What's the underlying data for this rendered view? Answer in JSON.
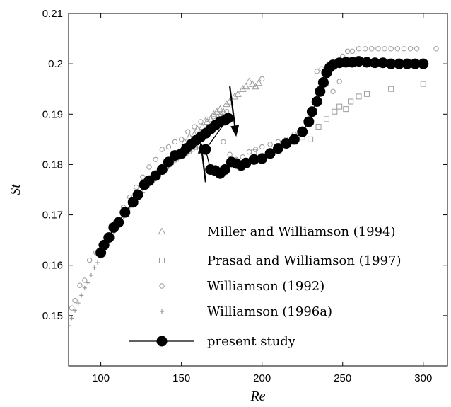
{
  "chart_data": {
    "type": "scatter",
    "title": "",
    "xlabel": "Re",
    "ylabel": "St",
    "xlim": [
      80,
      315
    ],
    "ylim": [
      0.14,
      0.21
    ],
    "x_ticks": [
      "100",
      "150",
      "200",
      "250",
      "300"
    ],
    "y_ticks": [
      "0.15",
      "0.16",
      "0.17",
      "0.18",
      "0.19",
      "0.2",
      "0.21"
    ],
    "grid": false,
    "legend_position": "lower-right",
    "colors": {
      "present_study": "#000000",
      "reference_data": "#9a9a9a"
    },
    "series": [
      {
        "name": "Miller and Williamson (1994)",
        "marker": "triangle",
        "points": [
          [
            152,
            0.1845
          ],
          [
            155,
            0.1855
          ],
          [
            158,
            0.186
          ],
          [
            160,
            0.187
          ],
          [
            163,
            0.1875
          ],
          [
            166,
            0.1885
          ],
          [
            168,
            0.189
          ],
          [
            170,
            0.19
          ],
          [
            172,
            0.1905
          ],
          [
            174,
            0.191
          ],
          [
            176,
            0.1905
          ],
          [
            178,
            0.192
          ],
          [
            180,
            0.1925
          ],
          [
            183,
            0.1935
          ],
          [
            185,
            0.194
          ],
          [
            188,
            0.195
          ],
          [
            190,
            0.1955
          ],
          [
            192,
            0.1965
          ],
          [
            194,
            0.196
          ],
          [
            196,
            0.1955
          ],
          [
            198,
            0.1962
          ]
        ]
      },
      {
        "name": "Prasad and Williamson (1997)",
        "marker": "square",
        "points": [
          [
            195,
            0.1825
          ],
          [
            200,
            0.181
          ],
          [
            205,
            0.182
          ],
          [
            210,
            0.1835
          ],
          [
            215,
            0.184
          ],
          [
            220,
            0.1845
          ],
          [
            225,
            0.1855
          ],
          [
            230,
            0.185
          ],
          [
            235,
            0.1875
          ],
          [
            240,
            0.189
          ],
          [
            245,
            0.1905
          ],
          [
            248,
            0.1915
          ],
          [
            252,
            0.191
          ],
          [
            255,
            0.1925
          ],
          [
            260,
            0.1935
          ],
          [
            265,
            0.194
          ],
          [
            280,
            0.195
          ],
          [
            300,
            0.196
          ]
        ]
      },
      {
        "name": "Williamson (1992)",
        "marker": "circle",
        "points": [
          [
            82,
            0.1515
          ],
          [
            84,
            0.153
          ],
          [
            87,
            0.156
          ],
          [
            90,
            0.157
          ],
          [
            93,
            0.161
          ],
          [
            97,
            0.1625
          ],
          [
            100,
            0.164
          ],
          [
            103,
            0.1655
          ],
          [
            107,
            0.1675
          ],
          [
            110,
            0.169
          ],
          [
            114,
            0.1715
          ],
          [
            118,
            0.1735
          ],
          [
            122,
            0.1755
          ],
          [
            126,
            0.1775
          ],
          [
            130,
            0.1795
          ],
          [
            134,
            0.181
          ],
          [
            138,
            0.183
          ],
          [
            142,
            0.1835
          ],
          [
            146,
            0.1845
          ],
          [
            150,
            0.185
          ],
          [
            154,
            0.1865
          ],
          [
            158,
            0.1875
          ],
          [
            162,
            0.1885
          ],
          [
            166,
            0.189
          ],
          [
            170,
            0.1895
          ],
          [
            174,
            0.19
          ],
          [
            178,
            0.1905
          ],
          [
            176,
            0.1845
          ],
          [
            180,
            0.182
          ],
          [
            184,
            0.181
          ],
          [
            188,
            0.1815
          ],
          [
            192,
            0.1825
          ],
          [
            196,
            0.183
          ],
          [
            200,
            0.1835
          ],
          [
            205,
            0.184
          ],
          [
            210,
            0.1845
          ],
          [
            215,
            0.185
          ],
          [
            220,
            0.186
          ],
          [
            225,
            0.187
          ],
          [
            230,
            0.1905
          ],
          [
            234,
            0.1985
          ],
          [
            237,
            0.199
          ],
          [
            240,
            0.196
          ],
          [
            244,
            0.1945
          ],
          [
            248,
            0.1965
          ],
          [
            250,
            0.2015
          ],
          [
            253,
            0.2025
          ],
          [
            256,
            0.2025
          ],
          [
            260,
            0.203
          ],
          [
            264,
            0.203
          ],
          [
            268,
            0.203
          ],
          [
            272,
            0.203
          ],
          [
            276,
            0.203
          ],
          [
            280,
            0.203
          ],
          [
            284,
            0.203
          ],
          [
            288,
            0.203
          ],
          [
            292,
            0.203
          ],
          [
            296,
            0.203
          ],
          [
            200,
            0.197
          ],
          [
            308,
            0.203
          ]
        ]
      },
      {
        "name": "Williamson (1996a)",
        "marker": "plus",
        "points": [
          [
            80,
            0.148
          ],
          [
            82,
            0.1495
          ],
          [
            84,
            0.151
          ],
          [
            86,
            0.1525
          ],
          [
            88,
            0.154
          ],
          [
            90,
            0.1555
          ],
          [
            92,
            0.1565
          ],
          [
            94,
            0.158
          ],
          [
            96,
            0.1595
          ],
          [
            98,
            0.1605
          ],
          [
            100,
            0.162
          ],
          [
            102,
            0.1635
          ],
          [
            104,
            0.1645
          ],
          [
            106,
            0.1655
          ],
          [
            108,
            0.1665
          ],
          [
            110,
            0.1675
          ],
          [
            112,
            0.1685
          ],
          [
            114,
            0.1695
          ],
          [
            116,
            0.1705
          ],
          [
            118,
            0.1715
          ],
          [
            120,
            0.1725
          ],
          [
            122,
            0.173
          ],
          [
            124,
            0.1738
          ],
          [
            126,
            0.1745
          ],
          [
            128,
            0.1752
          ],
          [
            130,
            0.1758
          ],
          [
            132,
            0.1765
          ],
          [
            134,
            0.177
          ],
          [
            136,
            0.1778
          ],
          [
            138,
            0.1785
          ],
          [
            140,
            0.179
          ],
          [
            142,
            0.1795
          ],
          [
            144,
            0.18
          ],
          [
            146,
            0.1805
          ],
          [
            148,
            0.181
          ],
          [
            150,
            0.1815
          ],
          [
            152,
            0.1818
          ],
          [
            154,
            0.1822
          ],
          [
            156,
            0.1826
          ],
          [
            158,
            0.183
          ],
          [
            160,
            0.1833
          ],
          [
            162,
            0.1836
          ]
        ]
      },
      {
        "name": "present study",
        "marker": "filled-circle-line",
        "points": [
          [
            100,
            0.1625
          ],
          [
            102,
            0.164
          ],
          [
            105,
            0.1655
          ],
          [
            108,
            0.1675
          ],
          [
            111,
            0.1685
          ],
          [
            115,
            0.1705
          ],
          [
            120,
            0.1725
          ],
          [
            123,
            0.174
          ],
          [
            127,
            0.176
          ],
          [
            130,
            0.1768
          ],
          [
            134,
            0.1778
          ],
          [
            138,
            0.179
          ],
          [
            142,
            0.1805
          ],
          [
            146,
            0.1818
          ],
          [
            150,
            0.1822
          ],
          [
            153,
            0.1832
          ],
          [
            156,
            0.184
          ],
          [
            159,
            0.1848
          ],
          [
            162,
            0.1855
          ],
          [
            165,
            0.1862
          ],
          [
            168,
            0.187
          ],
          [
            171,
            0.1878
          ],
          [
            174,
            0.1885
          ],
          [
            177,
            0.1888
          ],
          [
            179,
            0.1892
          ],
          [
            165,
            0.183
          ],
          [
            168,
            0.179
          ],
          [
            171,
            0.1788
          ],
          [
            174,
            0.1782
          ],
          [
            177,
            0.179
          ],
          [
            181,
            0.1805
          ],
          [
            184,
            0.1802
          ],
          [
            187,
            0.1798
          ],
          [
            190,
            0.1803
          ],
          [
            195,
            0.181
          ],
          [
            200,
            0.1812
          ],
          [
            205,
            0.1822
          ],
          [
            210,
            0.1832
          ],
          [
            215,
            0.1842
          ],
          [
            220,
            0.185
          ],
          [
            225,
            0.1865
          ],
          [
            229,
            0.1885
          ],
          [
            231,
            0.1905
          ],
          [
            234,
            0.1925
          ],
          [
            236,
            0.1945
          ],
          [
            238,
            0.1963
          ],
          [
            240,
            0.1982
          ],
          [
            242,
            0.1993
          ],
          [
            244,
            0.1998
          ],
          [
            248,
            0.2002
          ],
          [
            252,
            0.2003
          ],
          [
            256,
            0.2003
          ],
          [
            260,
            0.2005
          ],
          [
            265,
            0.2003
          ],
          [
            270,
            0.2002
          ],
          [
            275,
            0.2002
          ],
          [
            280,
            0.2
          ],
          [
            285,
            0.2
          ],
          [
            290,
            0.2
          ],
          [
            295,
            0.2
          ],
          [
            300,
            0.2
          ]
        ]
      }
    ],
    "annotations": [
      {
        "type": "arrow",
        "direction": "up",
        "from": [
          165,
          0.1765
        ],
        "to": [
          162,
          0.1845
        ]
      },
      {
        "type": "arrow",
        "direction": "down",
        "from": [
          180,
          0.1955
        ],
        "to": [
          184,
          0.1855
        ]
      }
    ]
  }
}
